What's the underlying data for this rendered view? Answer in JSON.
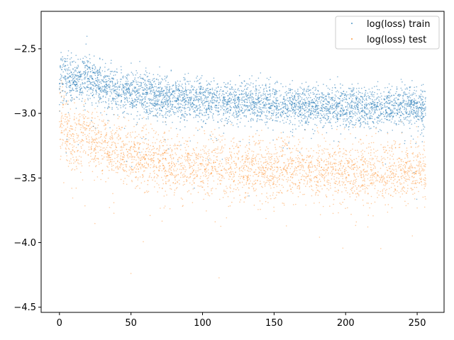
{
  "chart_data": {
    "type": "scatter",
    "title": "",
    "xlabel": "",
    "ylabel": "",
    "xlim": [
      -12.8,
      268.8
    ],
    "ylim": [
      -4.54,
      -2.21
    ],
    "x_ticks": [
      0,
      50,
      100,
      150,
      200,
      250
    ],
    "y_ticks": [
      -4.5,
      -4.0,
      -3.5,
      -3.0,
      -2.5
    ],
    "x_tick_labels": [
      "0",
      "50",
      "100",
      "150",
      "200",
      "250"
    ],
    "y_tick_labels": [
      "−4.5",
      "−4.0",
      "−3.5",
      "−3.0",
      "−2.5"
    ],
    "grid": false,
    "legend_position": "top-right",
    "series": [
      {
        "name": "log(loss) train",
        "color": "#1f77b4",
        "marker": "point",
        "x_range": [
          0,
          256
        ],
        "trend": {
          "x": [
            0,
            2,
            5,
            10,
            16,
            17,
            20,
            30,
            50,
            75,
            100,
            150,
            200,
            256
          ],
          "center": [
            -2.8,
            -2.67,
            -2.7,
            -2.73,
            -2.76,
            -2.65,
            -2.72,
            -2.78,
            -2.84,
            -2.88,
            -2.9,
            -2.93,
            -2.95,
            -2.95
          ],
          "band_low": [
            -3.15,
            -2.98,
            -2.98,
            -3.0,
            -3.02,
            -2.95,
            -3.0,
            -3.05,
            -3.08,
            -3.12,
            -3.14,
            -3.15,
            -3.17,
            -3.17
          ],
          "band_high": [
            -2.5,
            -2.42,
            -2.45,
            -2.5,
            -2.52,
            -2.45,
            -2.5,
            -2.56,
            -2.62,
            -2.66,
            -2.7,
            -2.72,
            -2.74,
            -2.74
          ]
        }
      },
      {
        "name": "log(loss) test",
        "color": "#ff7f0e",
        "marker": "point",
        "x_range": [
          0,
          256
        ],
        "trend": {
          "x": [
            0,
            2,
            5,
            10,
            16,
            17,
            20,
            30,
            50,
            75,
            100,
            150,
            200,
            256
          ],
          "center": [
            -3.0,
            -3.05,
            -3.12,
            -3.18,
            -3.22,
            -3.1,
            -3.2,
            -3.25,
            -3.32,
            -3.38,
            -3.4,
            -3.43,
            -3.44,
            -3.44
          ],
          "band_low": [
            -3.5,
            -3.55,
            -3.6,
            -3.7,
            -3.75,
            -3.6,
            -3.7,
            -3.75,
            -3.8,
            -3.85,
            -3.85,
            -3.85,
            -3.85,
            -3.85
          ],
          "band_high": [
            -2.7,
            -2.75,
            -2.85,
            -2.95,
            -3.0,
            -2.9,
            -3.0,
            -3.05,
            -3.1,
            -3.15,
            -3.15,
            -3.18,
            -3.2,
            -3.2
          ]
        }
      }
    ]
  }
}
